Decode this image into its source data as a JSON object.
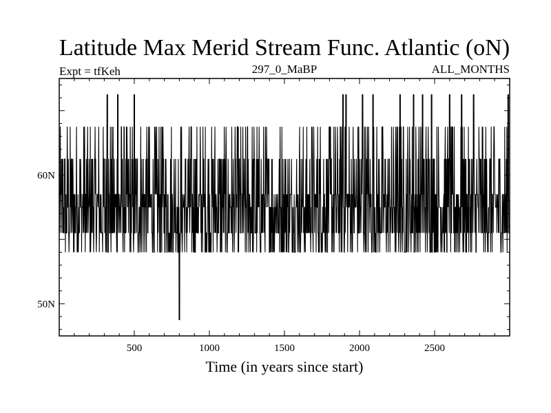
{
  "chart_data": {
    "type": "line",
    "title": "Latitude Max Merid Stream Func. Atlantic (oN)",
    "subtitle_left": "Expt = tfKeh",
    "subtitle_center": "297_0_MaBP",
    "subtitle_right": "ALL_MONTHS",
    "xlabel": "Time (in years since start)",
    "ylabel": "",
    "xlim": [
      0,
      3000
    ],
    "ylim": [
      47.5,
      67.5
    ],
    "x_ticks": [
      500,
      1000,
      1500,
      2000,
      2500
    ],
    "x_tick_labels": [
      "500",
      "1000",
      "1500",
      "2000",
      "2500"
    ],
    "y_ticks": [
      50,
      60
    ],
    "y_tick_labels": [
      "50N",
      "60N"
    ],
    "grid": false,
    "series": [
      {
        "color": "#000000",
        "sampling": "one value per year, years 1-3000",
        "levels": [
          54.0,
          55.5,
          57.5,
          58.5,
          61.25,
          63.75,
          66.25
        ],
        "typical_range": [
          54.0,
          63.75
        ],
        "spikes_high": [
          {
            "x": 320,
            "y": 66.25
          },
          {
            "x": 390,
            "y": 66.25
          },
          {
            "x": 500,
            "y": 66.25
          },
          {
            "x": 1890,
            "y": 66.25
          },
          {
            "x": 1910,
            "y": 66.25
          },
          {
            "x": 2020,
            "y": 66.25
          },
          {
            "x": 2090,
            "y": 66.25
          },
          {
            "x": 2270,
            "y": 66.25
          },
          {
            "x": 2360,
            "y": 66.25
          },
          {
            "x": 2420,
            "y": 66.25
          },
          {
            "x": 2480,
            "y": 66.25
          },
          {
            "x": 2600,
            "y": 66.25
          },
          {
            "x": 2680,
            "y": 66.25
          },
          {
            "x": 2760,
            "y": 66.25
          },
          {
            "x": 2990,
            "y": 66.25
          }
        ],
        "spikes_low": [
          {
            "x": 800,
            "y": 48.75
          }
        ]
      }
    ]
  }
}
